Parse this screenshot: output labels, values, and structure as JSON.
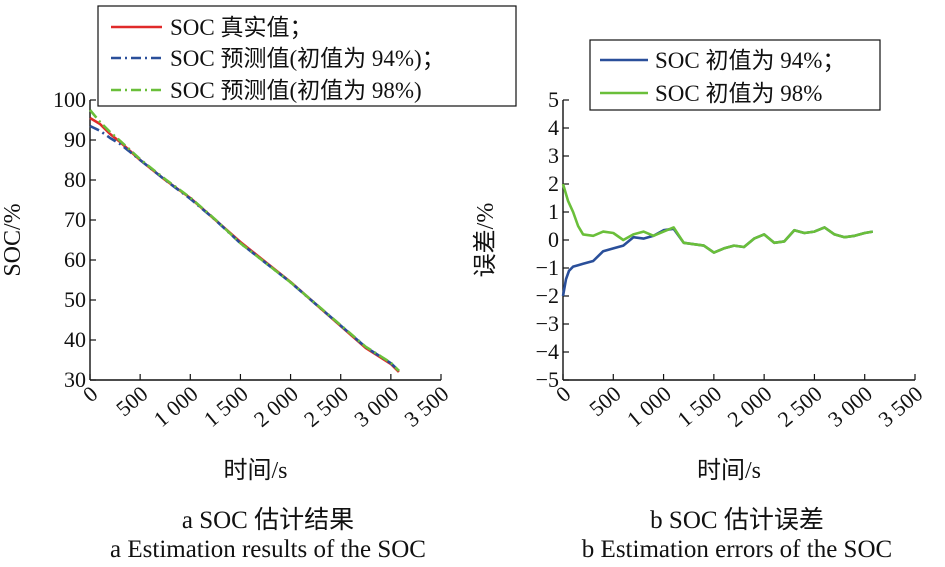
{
  "chart_data": [
    {
      "type": "line",
      "xlabel": "时间/s",
      "ylabel": "SOC/%",
      "xlim": [
        0,
        3500
      ],
      "ylim": [
        30,
        100
      ],
      "xticks": [
        "0",
        "500",
        "1 000",
        "1 500",
        "2 000",
        "2 500",
        "3 000",
        "3 500"
      ],
      "xtick_values": [
        0,
        500,
        1000,
        1500,
        2000,
        2500,
        3000,
        3500
      ],
      "yticks": [
        "30",
        "40",
        "50",
        "60",
        "70",
        "80",
        "90",
        "100"
      ],
      "ytick_values": [
        30,
        40,
        50,
        60,
        70,
        80,
        90,
        100
      ],
      "grid": false,
      "legend_position": "top-left",
      "caption_cn": "a SOC 估计结果",
      "caption_en": "a Estimation results of the SOC",
      "series": [
        {
          "name": "SOC 真实值；",
          "color": "#e02a2a",
          "style": "solid",
          "x": [
            0,
            100,
            200,
            300,
            500,
            750,
            1000,
            1250,
            1500,
            1750,
            2000,
            2250,
            2500,
            2750,
            3000,
            3080
          ],
          "y": [
            95.5,
            94.0,
            91.5,
            89.5,
            85.0,
            80.0,
            75.5,
            70.0,
            64.5,
            59.5,
            54.5,
            49.0,
            43.5,
            38.0,
            34.0,
            32.0
          ]
        },
        {
          "name": "SOC 预测值(初值为 94%)；",
          "color": "#2a4f9a",
          "style": "dashdot",
          "x": [
            0,
            100,
            200,
            300,
            500,
            750,
            1000,
            1250,
            1500,
            1750,
            2000,
            2250,
            2500,
            2750,
            3000,
            3080
          ],
          "y": [
            93.5,
            92.3,
            90.5,
            89.0,
            85.0,
            80.0,
            75.3,
            70.0,
            64.2,
            59.3,
            54.4,
            49.0,
            43.6,
            38.2,
            34.2,
            32.3
          ]
        },
        {
          "name": "SOC 预测值(初值为 98%)",
          "color": "#6abf3a",
          "style": "dashdot",
          "x": [
            0,
            100,
            200,
            300,
            500,
            750,
            1000,
            1250,
            1500,
            1750,
            2000,
            2250,
            2500,
            2750,
            3000,
            3080
          ],
          "y": [
            97.5,
            94.5,
            92.0,
            89.8,
            85.2,
            80.2,
            75.6,
            70.1,
            64.2,
            59.3,
            54.4,
            49.1,
            43.7,
            38.3,
            34.3,
            32.3
          ]
        }
      ]
    },
    {
      "type": "line",
      "xlabel": "时间/s",
      "ylabel": "误差/%",
      "xlim": [
        0,
        3500
      ],
      "ylim": [
        -5,
        5
      ],
      "xticks": [
        "0",
        "500",
        "1 000",
        "1 500",
        "2 000",
        "2 500",
        "3 000",
        "3 500"
      ],
      "xtick_values": [
        0,
        500,
        1000,
        1500,
        2000,
        2500,
        3000,
        3500
      ],
      "yticks": [
        "−5",
        "−4",
        "−3",
        "−2",
        "−1",
        "0",
        "1",
        "2",
        "3",
        "4",
        "5"
      ],
      "ytick_values": [
        -5,
        -4,
        -3,
        -2,
        -1,
        0,
        1,
        2,
        3,
        4,
        5
      ],
      "grid": false,
      "legend_position": "top-right",
      "caption_cn": "b SOC 估计误差",
      "caption_en": "b Estimation errors of the SOC",
      "series": [
        {
          "name": "SOC 初值为 94%；",
          "color": "#2a4f9a",
          "style": "solid",
          "x": [
            0,
            30,
            60,
            100,
            150,
            200,
            300,
            400,
            500,
            600,
            700,
            800,
            900,
            1000,
            1100,
            1200,
            1300,
            1400,
            1500,
            1600,
            1700,
            1800,
            1900,
            2000,
            2100,
            2200,
            2300,
            2400,
            2500,
            2600,
            2700,
            2800,
            2900,
            3000,
            3080
          ],
          "y": [
            -2.0,
            -1.4,
            -1.1,
            -0.95,
            -0.9,
            -0.85,
            -0.75,
            -0.4,
            -0.3,
            -0.2,
            0.1,
            0.05,
            0.15,
            0.35,
            0.4,
            -0.1,
            -0.15,
            -0.2,
            -0.45,
            -0.3,
            -0.2,
            -0.25,
            0.05,
            0.2,
            -0.1,
            -0.05,
            0.35,
            0.25,
            0.3,
            0.45,
            0.2,
            0.1,
            0.15,
            0.25,
            0.3
          ]
        },
        {
          "name": "SOC 初值为 98%",
          "color": "#6abf3a",
          "style": "solid",
          "x": [
            0,
            50,
            100,
            150,
            200,
            300,
            400,
            500,
            600,
            700,
            800,
            900,
            1000,
            1100,
            1200,
            1300,
            1400,
            1500,
            1600,
            1700,
            1800,
            1900,
            2000,
            2100,
            2200,
            2300,
            2400,
            2500,
            2600,
            2700,
            2800,
            2900,
            3000,
            3080
          ],
          "y": [
            2.0,
            1.4,
            1.0,
            0.5,
            0.2,
            0.15,
            0.3,
            0.25,
            0.0,
            0.2,
            0.3,
            0.15,
            0.3,
            0.45,
            -0.1,
            -0.15,
            -0.2,
            -0.45,
            -0.3,
            -0.2,
            -0.25,
            0.05,
            0.2,
            -0.1,
            -0.05,
            0.35,
            0.25,
            0.3,
            0.45,
            0.2,
            0.1,
            0.15,
            0.25,
            0.3
          ]
        }
      ]
    }
  ]
}
